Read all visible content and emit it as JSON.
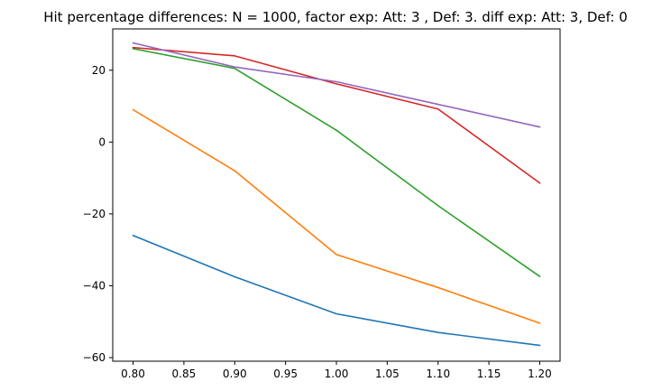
{
  "chart_data": {
    "type": "line",
    "title": "Hit percentage differences: N = 1000, factor exp: Att: 3 , Def: 3. diff exp: Att: 3, Def: 0",
    "xlabel": "",
    "ylabel": "",
    "x": [
      0.8,
      0.9,
      1.0,
      1.1,
      1.2
    ],
    "xlim": [
      0.78,
      1.22
    ],
    "ylim": [
      -61,
      31.5
    ],
    "xticks": [
      0.8,
      0.85,
      0.9,
      0.95,
      1.0,
      1.05,
      1.1,
      1.15,
      1.2
    ],
    "xtick_labels": [
      "0.80",
      "0.85",
      "0.90",
      "0.95",
      "1.00",
      "1.05",
      "1.10",
      "1.15",
      "1.20"
    ],
    "yticks": [
      20,
      0,
      -20,
      -40,
      -60
    ],
    "ytick_labels": [
      "20",
      "0",
      "−20",
      "−40",
      "−60"
    ],
    "grid": false,
    "legend": "none",
    "series": [
      {
        "color": "#1f77b4",
        "values": [
          -26.0,
          -37.5,
          -47.8,
          -53.0,
          -56.6
        ]
      },
      {
        "color": "#ff7f0e",
        "values": [
          9.0,
          -8.0,
          -31.3,
          -40.5,
          -50.4
        ]
      },
      {
        "color": "#2ca02c",
        "values": [
          26.0,
          20.5,
          3.3,
          -17.7,
          -37.4
        ]
      },
      {
        "color": "#d62728",
        "values": [
          26.3,
          24.0,
          16.2,
          9.2,
          -11.4
        ]
      },
      {
        "color": "#9467bd",
        "values": [
          27.6,
          20.9,
          16.8,
          10.5,
          4.2
        ]
      }
    ]
  }
}
